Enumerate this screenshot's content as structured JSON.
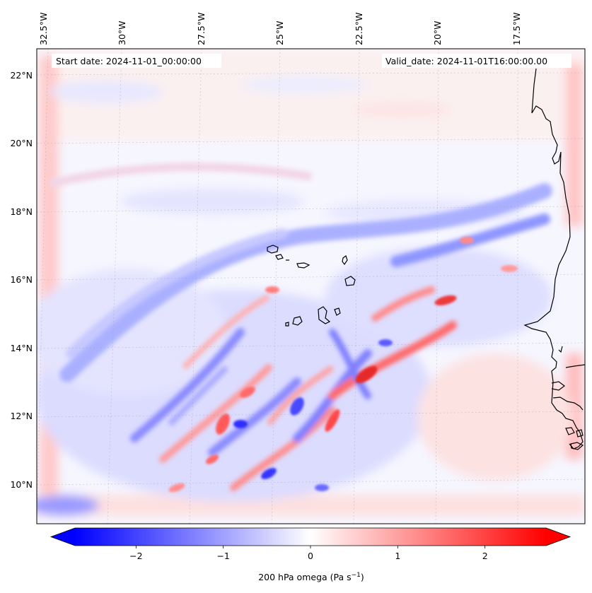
{
  "header": {
    "start_date": "Start date: 2024-11-01_00:00:00",
    "valid_date": "Valid_date: 2024-11-01T16:00:00.00"
  },
  "lon_labels": [
    "32.5°W",
    "30°W",
    "27.5°W",
    "25°W",
    "22.5°W",
    "20°W",
    "17.5°W"
  ],
  "lat_labels": [
    "22°N",
    "20°N",
    "18°N",
    "16°N",
    "14°N",
    "12°N",
    "10°N"
  ],
  "colorbar": {
    "ticks": [
      "−2",
      "−1",
      "0",
      "1",
      "2"
    ],
    "label": "200 hPa omega (Pa s",
    "label_sup": "−1",
    "label_end": ")",
    "vmin": -2.7,
    "vmax": 2.7,
    "cmap": "bwr",
    "low_color": "#0000ff",
    "mid_color": "#ffffff",
    "high_color": "#ff0000"
  }
}
